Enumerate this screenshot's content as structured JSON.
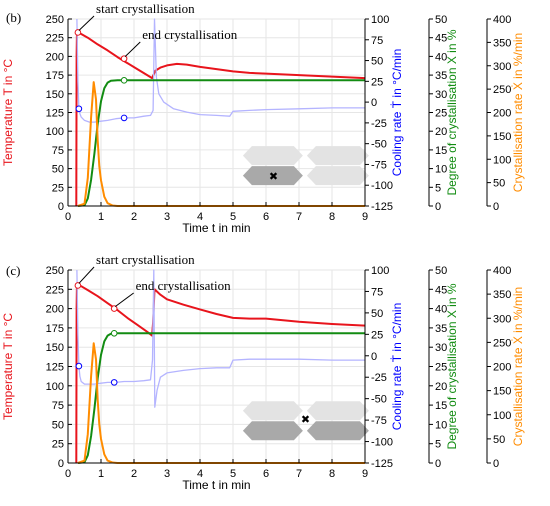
{
  "colors": {
    "temperature": "#e8141c",
    "cooling": "#0000ff",
    "cooling_curve": "#b4b4ff",
    "degree": "#128c12",
    "rate": "#ff8c00",
    "axis": "#000000",
    "grid": "#e6e6e6",
    "mold_light": "#e3e3e3",
    "mold_dark": "#a9a9a9"
  },
  "chart_data": [
    {
      "type": "line",
      "panel_label": "(b)",
      "xlabel": "Time t in min",
      "xlim": [
        0,
        9
      ],
      "x_ticks": [
        "0",
        "1",
        "2",
        "3",
        "4",
        "5",
        "6",
        "7",
        "8",
        "9"
      ],
      "grid": true,
      "annotations": [
        "start crystallisation",
        "end crystallisation"
      ],
      "axes": [
        {
          "label": "Temperature T in °C",
          "ylim": [
            0,
            250
          ],
          "ticks": [
            "0",
            "25",
            "50",
            "75",
            "100",
            "125",
            "150",
            "175",
            "200",
            "225",
            "250"
          ]
        },
        {
          "label": "Cooling rate Ṫ in °C/min",
          "ylim": [
            -125,
            100
          ],
          "ticks": [
            "-125",
            "-100",
            "-75",
            "-50",
            "-25",
            "0",
            "25",
            "50",
            "75",
            "100"
          ]
        },
        {
          "label": "Degree of crystallisation X in %",
          "ylim": [
            0,
            50
          ],
          "ticks": [
            "0",
            "5",
            "10",
            "15",
            "20",
            "25",
            "30",
            "35",
            "40",
            "45",
            "50"
          ]
        },
        {
          "label": "Crystallisation rate Ẋ in %/min",
          "ylim": [
            0,
            400
          ],
          "ticks": [
            "0",
            "50",
            "100",
            "150",
            "200",
            "250",
            "300",
            "350",
            "400"
          ]
        }
      ],
      "series": [
        {
          "key": "temperature",
          "axis": 0,
          "x": [
            0.25,
            0.26,
            0.27,
            0.3,
            0.4,
            0.6,
            0.9,
            1.2,
            1.5,
            1.8,
            2.1,
            2.4,
            2.55,
            2.65,
            2.8,
            3.0,
            3.3,
            3.6,
            4.0,
            4.5,
            5.0,
            5.5,
            6.0,
            7.0,
            8.0,
            9.0
          ],
          "y": [
            0,
            200,
            228,
            232,
            230,
            225,
            216,
            208,
            199,
            191,
            183,
            175,
            171,
            181,
            185,
            188,
            190,
            189,
            186,
            183,
            180,
            178,
            177,
            175,
            173,
            171
          ]
        },
        {
          "key": "cooling_rate",
          "axis": 1,
          "x": [
            0.27,
            0.3,
            0.33,
            0.36,
            0.4,
            0.5,
            0.65,
            0.8,
            1.0,
            1.2,
            1.45,
            1.7,
            2.0,
            2.3,
            2.5,
            2.58,
            2.62,
            2.68,
            2.75,
            2.9,
            3.2,
            3.6,
            4.0,
            4.5,
            4.9,
            5.0,
            5.5,
            6.0,
            7.0,
            8.0,
            9.0
          ],
          "y": [
            100,
            25,
            -8,
            -14,
            -18,
            -22,
            -24,
            -24,
            -23,
            -22,
            -20,
            -19,
            -19,
            -17,
            -16,
            -10,
            100,
            30,
            10,
            0,
            -8,
            -12,
            -15,
            -16,
            -17,
            -11,
            -10,
            -9,
            -8,
            -7,
            -7
          ]
        },
        {
          "key": "degree",
          "axis": 2,
          "x": [
            0.3,
            0.5,
            0.6,
            0.7,
            0.8,
            0.9,
            1.0,
            1.1,
            1.2,
            1.3,
            1.5,
            2.0,
            3.0,
            9.0
          ],
          "y": [
            0,
            0.2,
            2,
            7,
            14,
            22,
            28,
            31.5,
            33,
            33.5,
            33.6,
            33.6,
            33.6,
            33.6
          ]
        },
        {
          "key": "crystallisation_rate",
          "axis": 3,
          "x": [
            0.3,
            0.5,
            0.6,
            0.7,
            0.78,
            0.85,
            0.9,
            0.95,
            1.0,
            1.1,
            1.2,
            1.35,
            1.5,
            9.0
          ],
          "y": [
            0,
            5,
            60,
            190,
            265,
            228,
            140,
            85,
            55,
            20,
            6,
            1,
            0,
            0
          ]
        }
      ],
      "markers": [
        {
          "series": "temperature",
          "x": 0.3,
          "y": 232
        },
        {
          "series": "temperature",
          "x": 1.7,
          "y": 197
        },
        {
          "series": "cooling_rate",
          "x": 0.33,
          "y": -8
        },
        {
          "series": "cooling_rate",
          "x": 1.7,
          "y": -19
        },
        {
          "series": "degree",
          "x": 1.7,
          "y": 33.6
        }
      ],
      "inset": {
        "dark": "bottom-left",
        "cross": true
      }
    },
    {
      "type": "line",
      "panel_label": "(c)",
      "xlabel": "Time t in min",
      "xlim": [
        0,
        9
      ],
      "x_ticks": [
        "0",
        "1",
        "2",
        "3",
        "4",
        "5",
        "6",
        "7",
        "8",
        "9"
      ],
      "grid": true,
      "annotations": [
        "start crystallisation",
        "end crystallisation"
      ],
      "axes": [
        {
          "label": "Temperature T in °C",
          "ylim": [
            0,
            250
          ],
          "ticks": [
            "0",
            "25",
            "50",
            "75",
            "100",
            "125",
            "150",
            "175",
            "200",
            "225",
            "250"
          ]
        },
        {
          "label": "Cooling rate Ṫ in °C/min",
          "ylim": [
            -125,
            100
          ],
          "ticks": [
            "-125",
            "-100",
            "-75",
            "-50",
            "-25",
            "0",
            "25",
            "50",
            "75",
            "100"
          ]
        },
        {
          "label": "Degree of crystallisation X in %",
          "ylim": [
            0,
            50
          ],
          "ticks": [
            "0",
            "5",
            "10",
            "15",
            "20",
            "25",
            "30",
            "35",
            "40",
            "45",
            "50"
          ]
        },
        {
          "label": "Crystallisation rate Ẋ in %/min",
          "ylim": [
            0,
            400
          ],
          "ticks": [
            "0",
            "50",
            "100",
            "150",
            "200",
            "250",
            "300",
            "350",
            "400"
          ]
        }
      ],
      "series": [
        {
          "key": "temperature",
          "axis": 0,
          "x": [
            0.25,
            0.26,
            0.27,
            0.3,
            0.4,
            0.6,
            0.9,
            1.2,
            1.5,
            1.8,
            2.1,
            2.4,
            2.55,
            2.58,
            2.62,
            2.8,
            3.0,
            3.5,
            4.0,
            4.5,
            5.0,
            5.5,
            6.0,
            7.0,
            8.0,
            9.0
          ],
          "y": [
            0,
            200,
            228,
            230,
            229,
            224,
            216,
            207,
            198,
            188,
            179,
            170,
            165,
            182,
            225,
            218,
            212,
            205,
            199,
            193,
            188,
            187,
            187,
            183,
            180,
            178
          ]
        },
        {
          "key": "cooling_rate",
          "axis": 1,
          "x": [
            0.27,
            0.3,
            0.33,
            0.36,
            0.4,
            0.5,
            0.65,
            0.8,
            1.0,
            1.2,
            1.45,
            1.7,
            2.0,
            2.3,
            2.5,
            2.56,
            2.6,
            2.63,
            2.7,
            2.8,
            3.0,
            3.5,
            4.0,
            4.5,
            4.9,
            5.0,
            5.5,
            6.0,
            7.0,
            8.0,
            9.0
          ],
          "y": [
            100,
            25,
            -12,
            -24,
            -30,
            -33,
            -33,
            -33,
            -32,
            -31,
            -31,
            -30,
            -30,
            -29,
            -28,
            -5,
            100,
            -60,
            -40,
            -25,
            -20,
            -17,
            -15,
            -14,
            -14,
            -5,
            -4,
            -4,
            -4,
            -5,
            -5
          ]
        },
        {
          "key": "degree",
          "axis": 2,
          "x": [
            0.3,
            0.5,
            0.6,
            0.7,
            0.8,
            0.9,
            1.0,
            1.1,
            1.2,
            1.3,
            1.5,
            2.0,
            3.0,
            9.0
          ],
          "y": [
            0,
            0.2,
            2,
            7,
            14,
            22,
            28,
            31.5,
            33,
            33.5,
            33.6,
            33.6,
            33.6,
            33.6
          ]
        },
        {
          "key": "crystallisation_rate",
          "axis": 3,
          "x": [
            0.3,
            0.5,
            0.6,
            0.7,
            0.78,
            0.85,
            0.9,
            0.95,
            1.0,
            1.1,
            1.2,
            1.35,
            1.5,
            9.0
          ],
          "y": [
            0,
            5,
            60,
            180,
            248,
            215,
            130,
            80,
            50,
            18,
            5,
            1,
            0,
            0
          ]
        }
      ],
      "markers": [
        {
          "series": "temperature",
          "x": 0.3,
          "y": 230
        },
        {
          "series": "temperature",
          "x": 1.4,
          "y": 200
        },
        {
          "series": "cooling_rate",
          "x": 0.33,
          "y": -12
        },
        {
          "series": "cooling_rate",
          "x": 1.4,
          "y": -31
        },
        {
          "series": "degree",
          "x": 1.4,
          "y": 33.6
        }
      ],
      "inset": {
        "dark": "bottom-both",
        "cross": true
      }
    }
  ]
}
